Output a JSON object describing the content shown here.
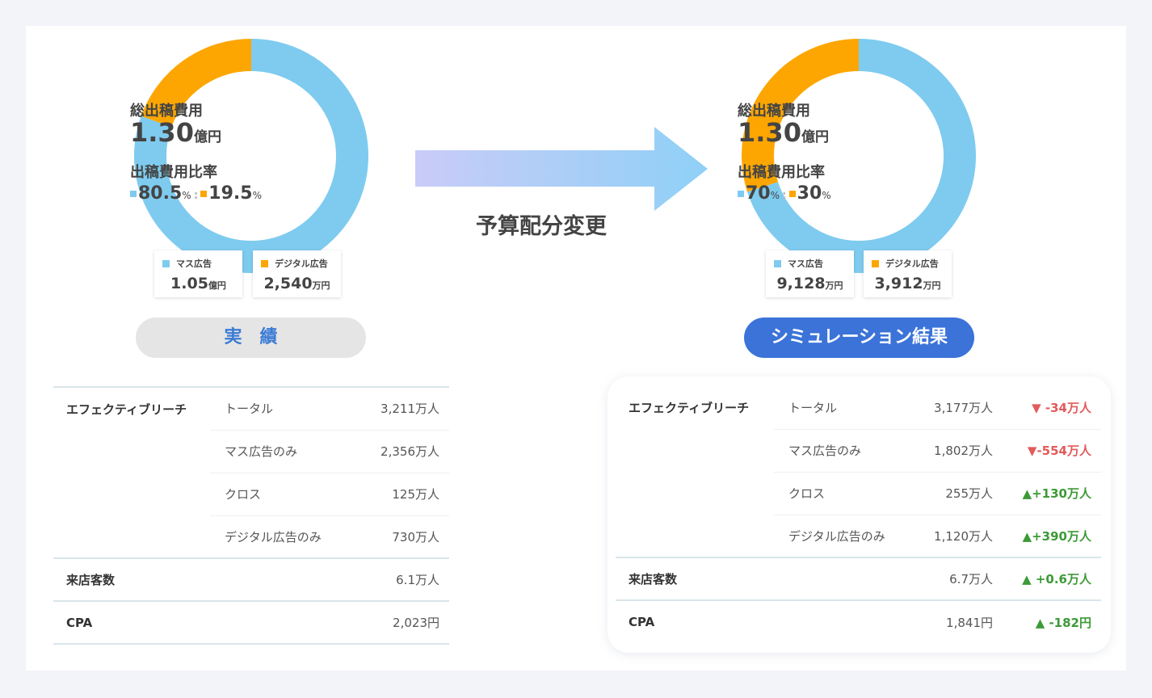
{
  "colors": {
    "mass": "#7ecbef",
    "digital": "#fda602",
    "pill_actual": "#e5e5e5",
    "pill_actual_text": "#3a7bd5",
    "pill_sim": "#3b73d8",
    "up": "#3d9a37",
    "down": "#e35a5a"
  },
  "arrow_label": "予算配分変更",
  "actual": {
    "title": "総出稿費用",
    "total": "1.30",
    "total_unit": "億円",
    "ratio_title": "出稿費用比率",
    "mass_pct": 80.5,
    "digital_pct": 19.5,
    "mass_pct_text": "80.5",
    "digital_pct_text": "19.5",
    "pct_unit": "%",
    "colon": ":",
    "mass_label": "マス広告",
    "mass_value": "1.05",
    "mass_unit": "億円",
    "digital_label": "デジタル広告",
    "digital_value": "2,540",
    "digital_unit": "万円",
    "pill": "実　績"
  },
  "simulation": {
    "title": "総出稿費用",
    "total": "1.30",
    "total_unit": "億円",
    "ratio_title": "出稿費用比率",
    "mass_pct": 70,
    "digital_pct": 30,
    "mass_pct_text": "70",
    "digital_pct_text": "30",
    "pct_unit": "%",
    "colon": ":",
    "mass_label": "マス広告",
    "mass_value": "9,128",
    "mass_unit": "万円",
    "digital_label": "デジタル広告",
    "digital_value": "3,912",
    "digital_unit": "万円",
    "pill": "シミュレーション結果"
  },
  "table_actual": {
    "reach": "エフェクティブリーチ",
    "rows": [
      {
        "label": "トータル",
        "value": "3,211万人"
      },
      {
        "label": "マス広告のみ",
        "value": "2,356万人"
      },
      {
        "label": "クロス",
        "value": "125万人"
      },
      {
        "label": "デジタル広告のみ",
        "value": "730万人"
      }
    ],
    "visitors": {
      "label": "来店客数",
      "value": "6.1万人"
    },
    "cpa": {
      "label": "CPA",
      "value": "2,023円"
    }
  },
  "table_sim": {
    "reach": "エフェクティブリーチ",
    "rows": [
      {
        "label": "トータル",
        "value": "3,177万人",
        "delta": "▼ -34万人",
        "dir": "down"
      },
      {
        "label": "マス広告のみ",
        "value": "1,802万人",
        "delta": "▼-554万人",
        "dir": "down"
      },
      {
        "label": "クロス",
        "value": "255万人",
        "delta": "▲+130万人",
        "dir": "up"
      },
      {
        "label": "デジタル広告のみ",
        "value": "1,120万人",
        "delta": "▲+390万人",
        "dir": "up"
      }
    ],
    "visitors": {
      "label": "来店客数",
      "value": "6.7万人",
      "delta": "▲ +0.6万人",
      "dir": "up"
    },
    "cpa": {
      "label": "CPA",
      "value": "1,841円",
      "delta": "▲ -182円",
      "dir": "up"
    }
  }
}
